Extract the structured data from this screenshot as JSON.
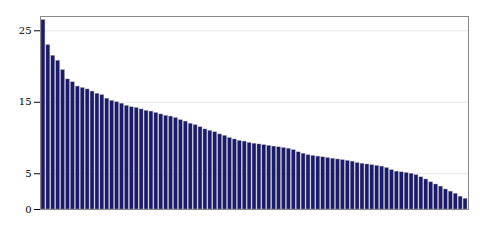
{
  "chart_data": {
    "type": "bar",
    "categories": [
      null,
      null,
      null,
      null,
      null,
      null,
      null,
      null,
      null,
      null,
      null,
      null,
      null,
      null,
      null,
      null,
      null,
      null,
      null,
      null,
      null,
      null,
      null,
      null,
      null,
      null,
      null,
      null,
      null,
      null,
      null,
      null,
      null,
      null,
      null,
      null,
      null,
      null,
      null,
      null,
      null,
      null,
      null,
      null,
      null,
      null,
      null,
      null,
      null,
      null,
      null,
      null,
      null,
      null,
      null,
      null,
      null,
      null,
      null,
      null,
      null,
      null,
      null,
      null,
      null,
      null,
      null,
      null,
      null,
      null,
      null,
      null,
      null,
      null,
      null,
      null,
      null,
      null,
      null,
      null,
      null,
      null,
      null,
      null,
      null,
      null,
      null
    ],
    "values": [
      26.5,
      23.0,
      21.5,
      20.8,
      19.5,
      18.2,
      17.8,
      17.2,
      17.0,
      16.8,
      16.5,
      16.2,
      16.0,
      15.5,
      15.2,
      15.0,
      14.8,
      14.5,
      14.3,
      14.2,
      14.0,
      13.8,
      13.7,
      13.5,
      13.3,
      13.1,
      13.0,
      12.8,
      12.5,
      12.3,
      12.0,
      11.8,
      11.5,
      11.2,
      11.0,
      10.8,
      10.5,
      10.3,
      10.0,
      9.8,
      9.6,
      9.5,
      9.3,
      9.2,
      9.1,
      9.0,
      8.9,
      8.8,
      8.7,
      8.6,
      8.5,
      8.3,
      8.0,
      7.8,
      7.6,
      7.5,
      7.4,
      7.3,
      7.2,
      7.1,
      7.0,
      6.9,
      6.8,
      6.7,
      6.5,
      6.4,
      6.3,
      6.2,
      6.1,
      6.0,
      5.8,
      5.5,
      5.3,
      5.2,
      5.1,
      5.0,
      4.8,
      4.5,
      4.2,
      3.8,
      3.5,
      3.2,
      2.8,
      2.5,
      2.2,
      1.8,
      1.5
    ],
    "color": "#1a1a6e",
    "ylim": [
      0,
      27
    ],
    "yticks": [
      0,
      5,
      15,
      25
    ],
    "grid": true,
    "tick_labels": "y"
  }
}
